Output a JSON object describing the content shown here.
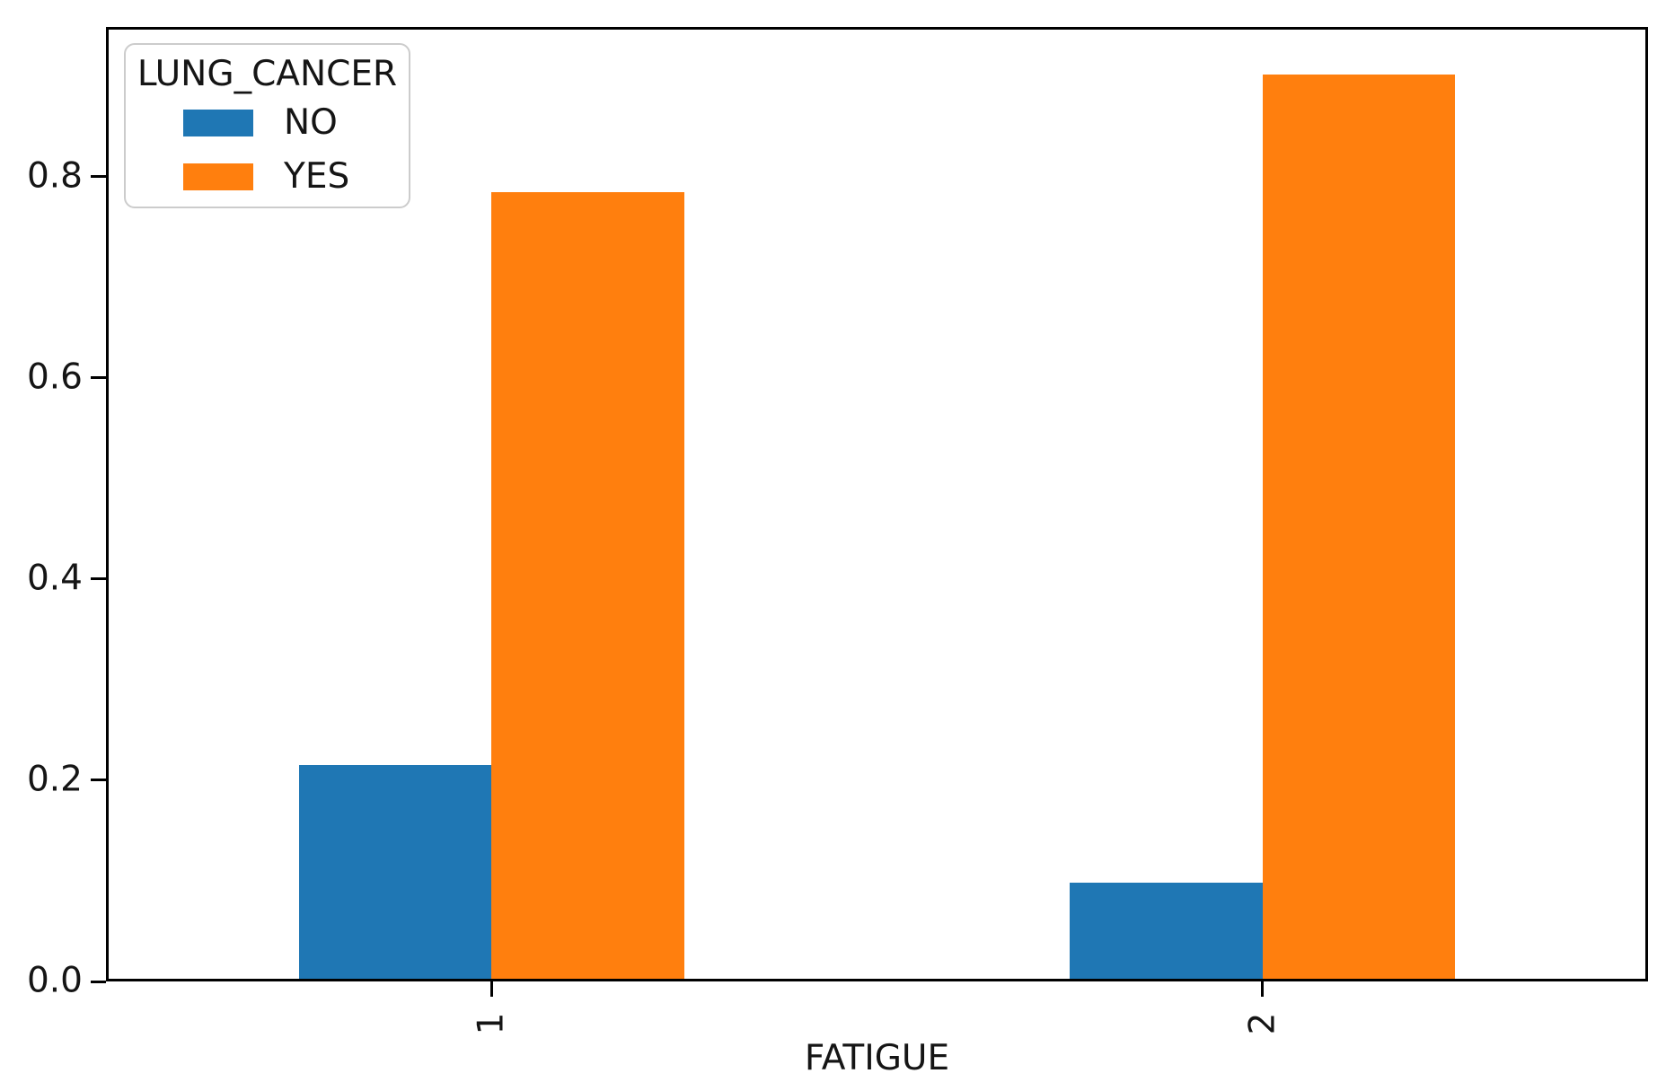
{
  "chart_data": {
    "type": "bar",
    "title": "",
    "xlabel": "FATIGUE",
    "ylabel": "",
    "categories": [
      "1",
      "2"
    ],
    "series": [
      {
        "name": "NO",
        "color": "#1f77b4",
        "values": [
          0.215,
          0.098
        ]
      },
      {
        "name": "YES",
        "color": "#ff7f0e",
        "values": [
          0.785,
          0.902
        ]
      }
    ],
    "xlim": [
      -0.5,
      1.5
    ],
    "ylim": [
      0,
      0.949
    ],
    "yticks": [
      0,
      0.2,
      0.4,
      0.6,
      0.8
    ],
    "ytick_labels": [
      "0.0",
      "0.2",
      "0.4",
      "0.6",
      "0.8"
    ],
    "xtick_rotation_deg": 90,
    "bar_width": 0.25,
    "grid": false,
    "legend": {
      "title": "LUNG_CANCER",
      "position": "upper-left",
      "entries": [
        {
          "label": "NO",
          "color": "#1f77b4"
        },
        {
          "label": "YES",
          "color": "#ff7f0e"
        }
      ]
    },
    "axis_color": "#000000",
    "background_color": "#ffffff"
  }
}
